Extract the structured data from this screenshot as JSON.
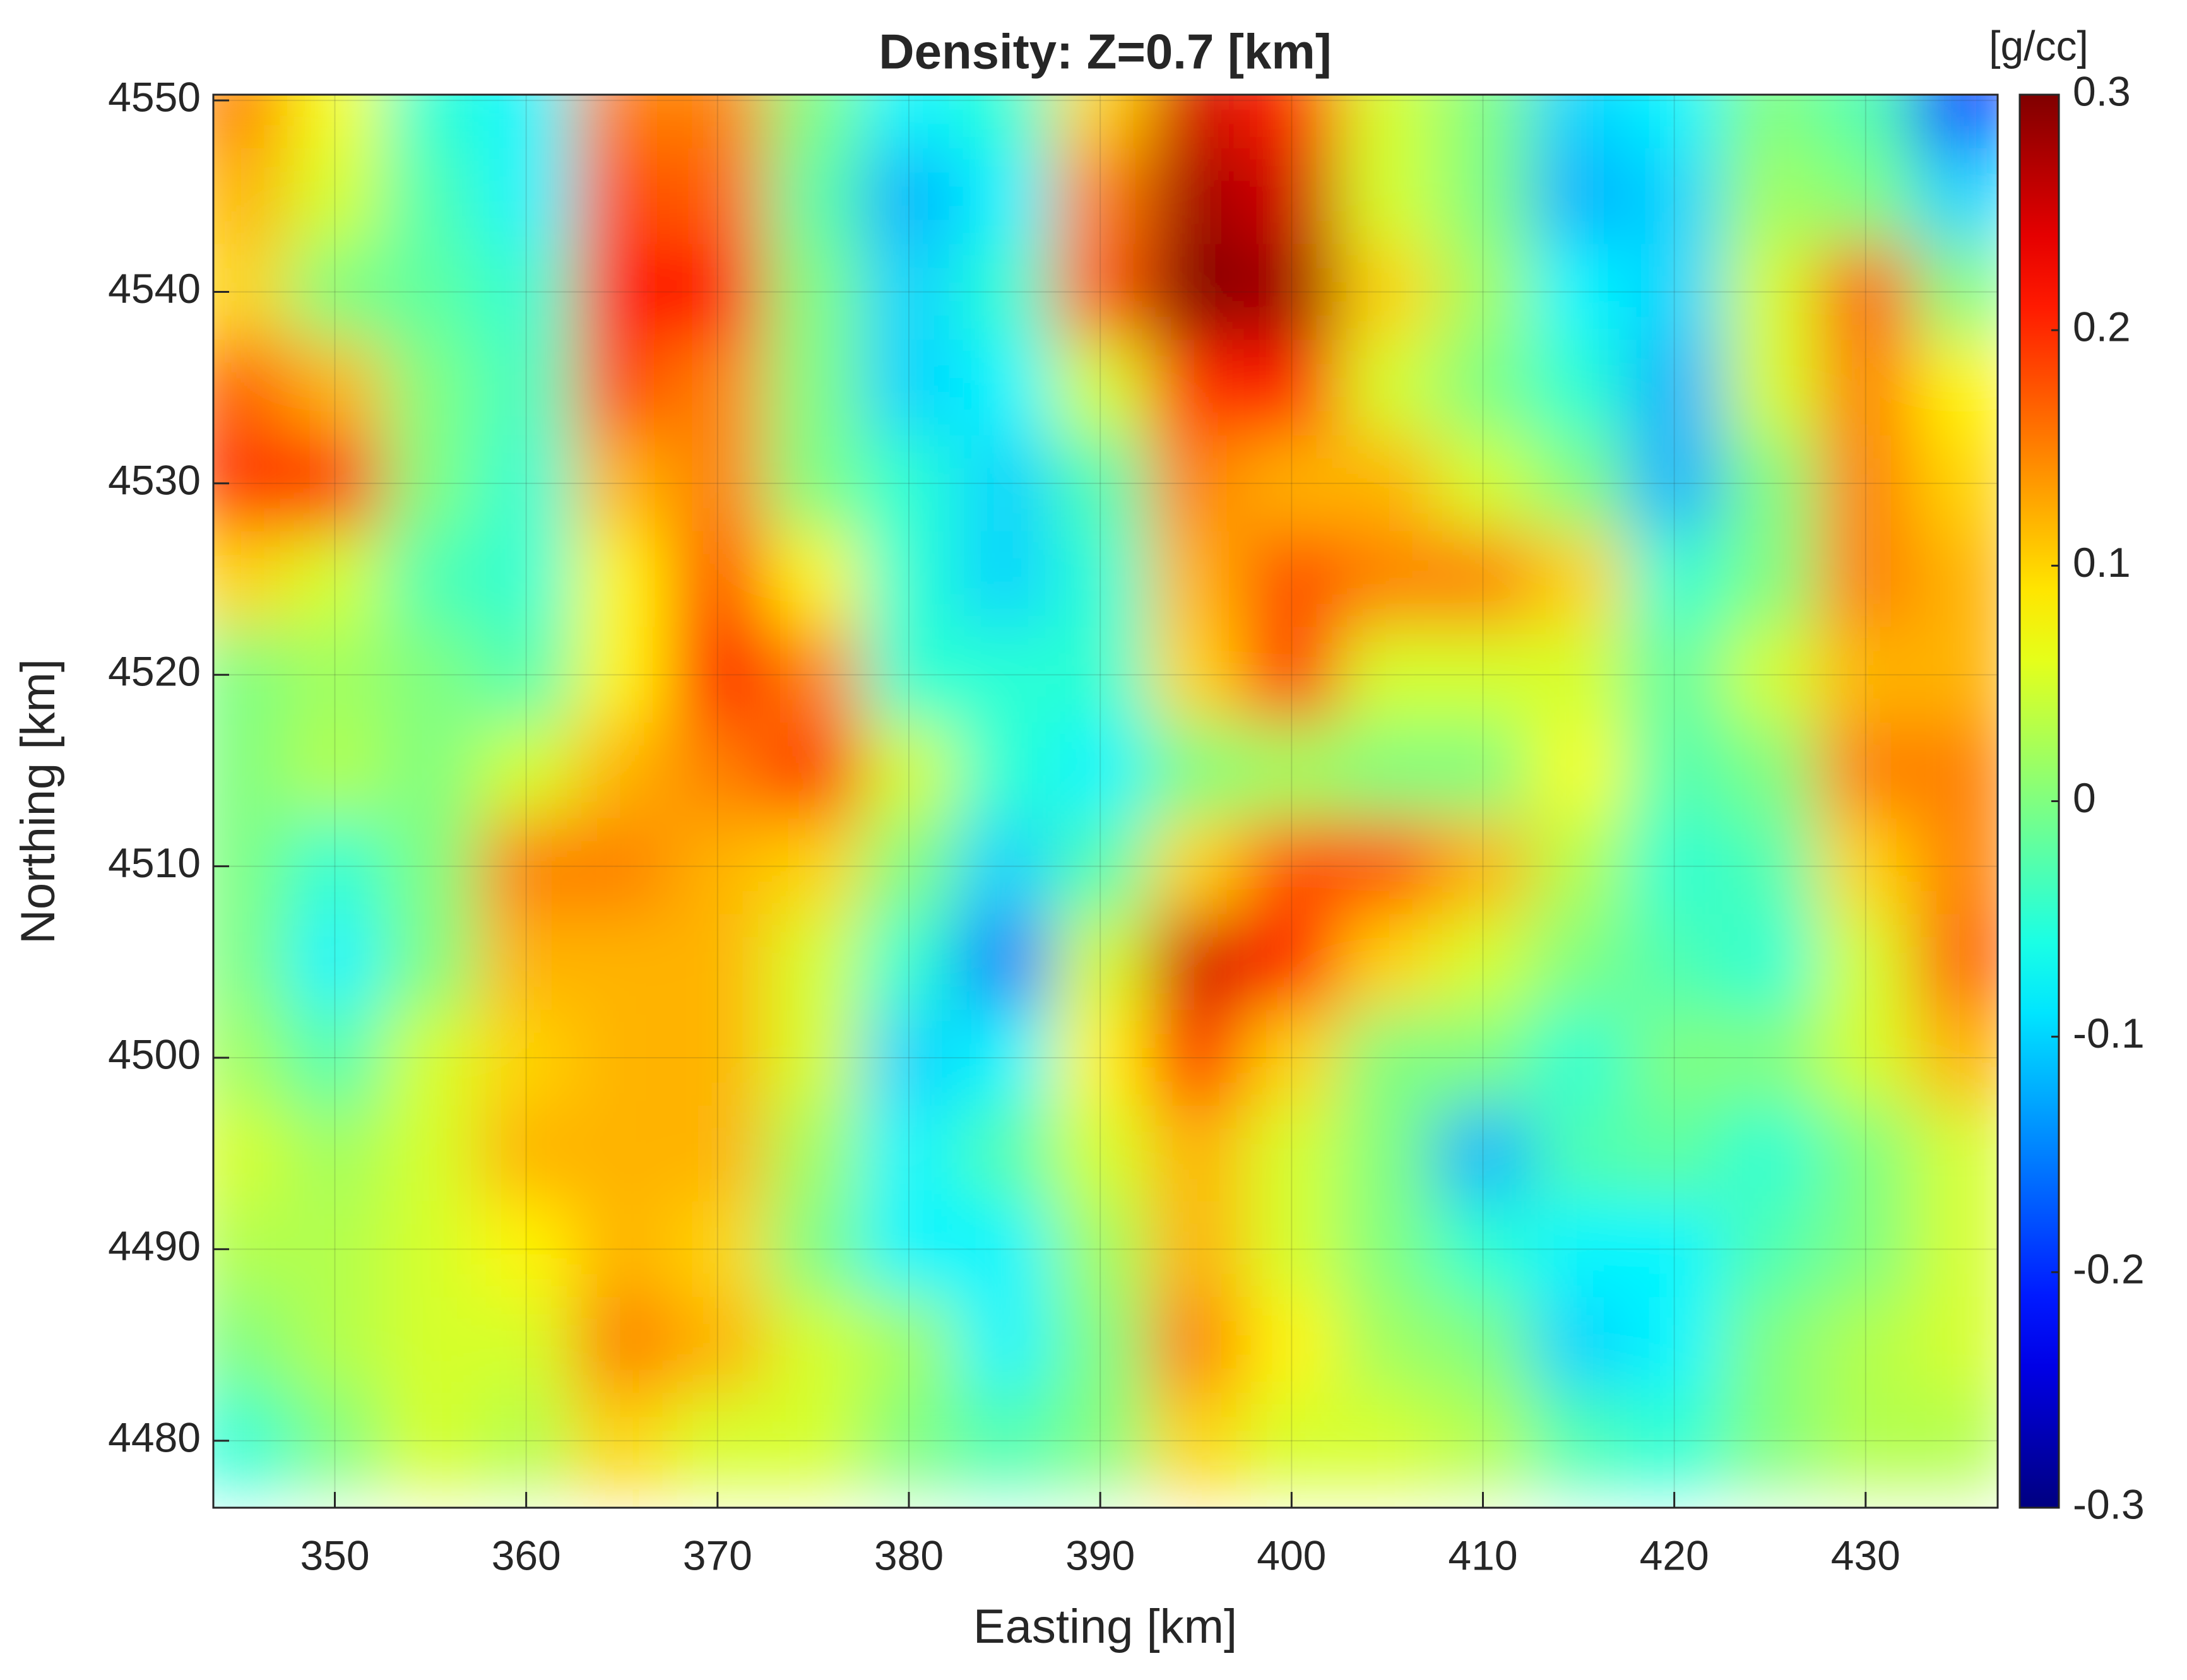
{
  "chart_data": {
    "type": "heatmap",
    "title": "Density: Z=0.7 [km]",
    "x_label": "Easting [km]",
    "y_label": "Northing [km]",
    "colorbar_label": "[g/cc]",
    "colormap": "jet",
    "grid": true,
    "xlim": [
      343.65,
      436.9
    ],
    "ylim": [
      4476.5,
      4550.3
    ],
    "xticks": [
      350,
      360,
      370,
      380,
      390,
      400,
      410,
      420,
      430
    ],
    "yticks": [
      4480,
      4490,
      4500,
      4510,
      4520,
      4530,
      4540,
      4550
    ],
    "clim": [
      -0.3,
      0.3
    ],
    "cticks": [
      -0.3,
      -0.2,
      -0.1,
      0,
      0.1,
      0.2,
      0.3
    ],
    "x": [
      345,
      350,
      355,
      360,
      365,
      370,
      375,
      380,
      385,
      390,
      395,
      400,
      405,
      410,
      415,
      420,
      425,
      430,
      435
    ],
    "y": [
      4550,
      4545,
      4540,
      4535,
      4530,
      4525,
      4520,
      4515,
      4510,
      4505,
      4500,
      4495,
      4490,
      4485,
      4480
    ],
    "z": [
      [
        0.15,
        0.07,
        -0.05,
        -0.08,
        0.15,
        0.15,
        0.0,
        -0.08,
        -0.05,
        0.1,
        0.25,
        0.2,
        0.05,
        0.0,
        -0.1,
        -0.08,
        0.0,
        -0.03,
        -0.2
      ],
      [
        0.12,
        0.05,
        -0.03,
        -0.08,
        0.18,
        0.17,
        -0.02,
        -0.12,
        -0.08,
        0.15,
        0.28,
        0.25,
        0.05,
        0.0,
        -0.12,
        -0.1,
        0.02,
        0.0,
        -0.1
      ],
      [
        0.1,
        0.0,
        -0.02,
        -0.05,
        0.22,
        0.22,
        0.0,
        -0.1,
        -0.05,
        0.17,
        0.3,
        0.28,
        0.1,
        0.02,
        -0.08,
        -0.1,
        0.05,
        0.17,
        0.0
      ],
      [
        0.17,
        0.12,
        0.0,
        -0.04,
        0.18,
        0.15,
        0.0,
        -0.1,
        -0.08,
        0.05,
        0.2,
        0.22,
        0.05,
        0.0,
        -0.05,
        -0.12,
        0.05,
        0.15,
        0.08
      ],
      [
        0.2,
        0.2,
        0.0,
        -0.05,
        0.12,
        0.15,
        0.0,
        -0.05,
        -0.1,
        -0.03,
        0.15,
        0.12,
        0.12,
        0.05,
        0.0,
        -0.12,
        0.0,
        0.15,
        0.1
      ],
      [
        0.1,
        0.05,
        -0.03,
        -0.05,
        0.08,
        0.18,
        0.08,
        -0.05,
        -0.1,
        -0.05,
        0.12,
        0.18,
        0.15,
        0.15,
        0.1,
        -0.05,
        0.0,
        0.15,
        0.12
      ],
      [
        0.0,
        0.02,
        0.0,
        -0.03,
        0.08,
        0.22,
        0.15,
        -0.05,
        -0.05,
        -0.05,
        0.1,
        0.2,
        0.05,
        0.05,
        0.05,
        -0.02,
        0.05,
        0.12,
        0.12
      ],
      [
        0.0,
        0.03,
        0.0,
        0.05,
        0.12,
        0.15,
        0.2,
        0.05,
        -0.05,
        -0.08,
        0.0,
        0.02,
        0.0,
        0.0,
        0.07,
        -0.03,
        0.0,
        0.15,
        0.15
      ],
      [
        0.0,
        -0.05,
        0.0,
        0.15,
        0.15,
        0.12,
        0.1,
        0.0,
        -0.1,
        -0.03,
        0.1,
        0.18,
        0.18,
        0.12,
        0.03,
        -0.05,
        -0.03,
        0.1,
        0.15
      ],
      [
        0.0,
        -0.08,
        0.0,
        0.12,
        0.12,
        0.12,
        0.05,
        -0.05,
        -0.15,
        0.05,
        0.25,
        0.22,
        0.1,
        0.05,
        0.0,
        -0.03,
        -0.05,
        0.05,
        0.17
      ],
      [
        0.02,
        -0.03,
        0.05,
        0.1,
        0.12,
        0.12,
        0.05,
        -0.1,
        -0.08,
        0.08,
        0.2,
        0.1,
        0.0,
        0.0,
        -0.05,
        0.0,
        0.0,
        0.05,
        0.12
      ],
      [
        0.05,
        0.02,
        0.05,
        0.12,
        0.12,
        0.12,
        0.02,
        -0.08,
        -0.03,
        0.05,
        0.12,
        0.05,
        0.0,
        -0.12,
        -0.03,
        -0.02,
        -0.05,
        0.0,
        0.05
      ],
      [
        0.03,
        0.03,
        0.05,
        0.08,
        0.12,
        0.1,
        0.0,
        -0.08,
        -0.08,
        0.02,
        0.12,
        0.05,
        0.0,
        -0.05,
        -0.08,
        -0.08,
        -0.03,
        0.0,
        0.05
      ],
      [
        0.0,
        0.03,
        0.05,
        0.05,
        0.15,
        0.12,
        0.05,
        0.02,
        -0.08,
        0.0,
        0.15,
        0.08,
        0.02,
        0.0,
        -0.1,
        -0.08,
        0.0,
        0.03,
        0.05
      ],
      [
        -0.05,
        0.0,
        0.05,
        0.03,
        0.1,
        0.05,
        0.05,
        0.0,
        -0.03,
        0.0,
        0.1,
        0.05,
        0.05,
        0.03,
        -0.03,
        -0.05,
        0.0,
        0.03,
        0.03
      ]
    ]
  }
}
